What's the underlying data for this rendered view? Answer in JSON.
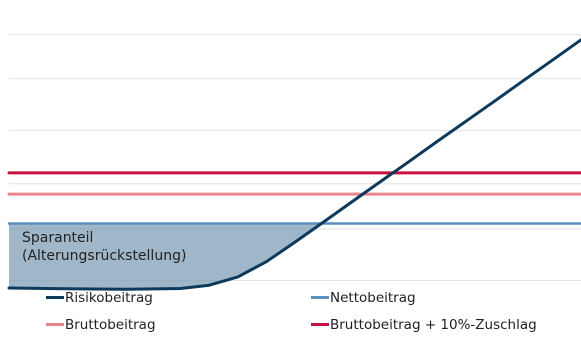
{
  "chart_data": {
    "type": "line",
    "title": "",
    "xlabel": "",
    "ylabel": "",
    "xlim": [
      0,
      100
    ],
    "ylim": [
      0,
      100
    ],
    "grid": true,
    "legend_placement": "bottom",
    "series": [
      {
        "name": "Risikobeitrag",
        "color": "#0d3a5c",
        "x": [
          0,
          10,
          20,
          30,
          35,
          40,
          45,
          50,
          55,
          60,
          65,
          70,
          75,
          80,
          85,
          90,
          95,
          100
        ],
        "y": [
          0,
          -0.3,
          -0.5,
          -0.2,
          1.1,
          4.3,
          10.2,
          17.8,
          25.6,
          33.5,
          41.3,
          49.1,
          57,
          64.8,
          72.6,
          80.5,
          88.3,
          96.2
        ]
      },
      {
        "name": "Nettobeitrag",
        "color": "#5a8fbe",
        "x": [
          0,
          100
        ],
        "y": [
          25,
          25
        ]
      },
      {
        "name": "Bruttobeitrag",
        "color": "#e8868c",
        "x": [
          0,
          100
        ],
        "y": [
          36.4,
          36.4
        ]
      },
      {
        "name": "Bruttobeitrag + 10%-Zuschlag",
        "color": "#c8103e",
        "x": [
          0,
          100
        ],
        "y": [
          44.6,
          44.6
        ]
      }
    ],
    "shaded_area": {
      "label_lines": [
        "Sparanteil",
        "(Alterungsrückstellung)"
      ],
      "color": "#7f9fb6"
    },
    "gridline_values": [
      2.9,
      22.9,
      40.4,
      61.1,
      81.1,
      98.2
    ]
  }
}
